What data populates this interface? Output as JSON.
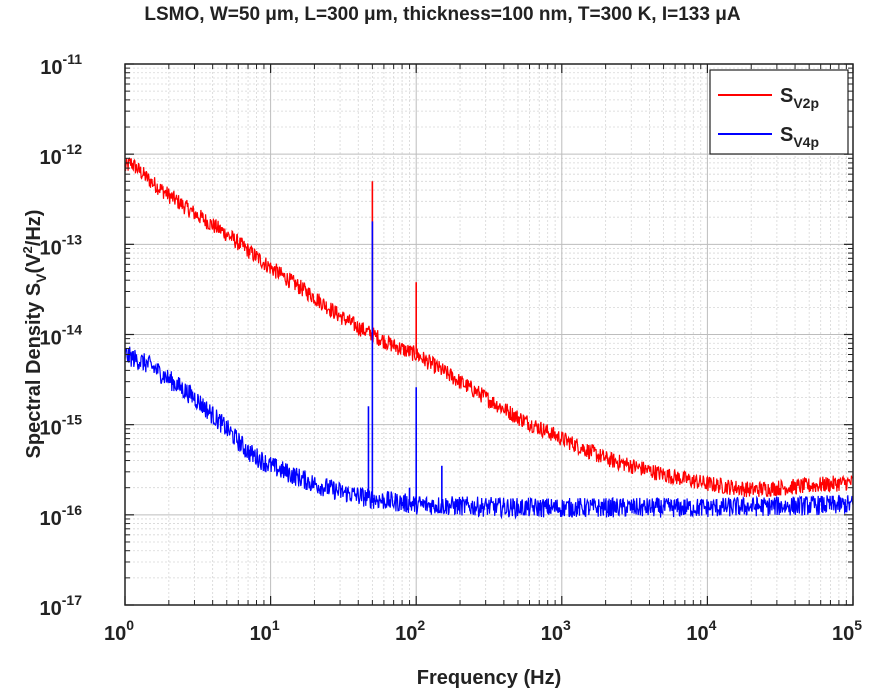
{
  "chart_data": {
    "type": "line",
    "title": "LSMO, W=50 μm, L=300 μm, thickness=100 nm, T=300 K, I=133 μA",
    "xlabel": "Frequency (Hz)",
    "ylabel": {
      "main": "Spectral Density S",
      "sub": "V",
      "rest": "(V",
      "sup": "2",
      "end": "/Hz)"
    },
    "x_scale": "log",
    "y_scale": "log",
    "xlim": [
      1,
      100000
    ],
    "ylim": [
      1e-17,
      1e-11
    ],
    "x_ticks": [
      {
        "base": "10",
        "exp": "0"
      },
      {
        "base": "10",
        "exp": "1"
      },
      {
        "base": "10",
        "exp": "2"
      },
      {
        "base": "10",
        "exp": "3"
      },
      {
        "base": "10",
        "exp": "4"
      },
      {
        "base": "10",
        "exp": "5"
      }
    ],
    "y_ticks": [
      {
        "base": "10",
        "exp": "-17"
      },
      {
        "base": "10",
        "exp": "-16"
      },
      {
        "base": "10",
        "exp": "-15"
      },
      {
        "base": "10",
        "exp": "-14"
      },
      {
        "base": "10",
        "exp": "-13"
      },
      {
        "base": "10",
        "exp": "-12"
      },
      {
        "base": "10",
        "exp": "-11"
      }
    ],
    "grid": true,
    "legend_position": "top-right",
    "series": [
      {
        "name": "S",
        "name_sub": "V2p",
        "color": "#ff0000",
        "points": [
          [
            1,
            7e-13
          ],
          [
            1.1,
            8e-13
          ],
          [
            1.5,
            5e-13
          ],
          [
            2,
            3.5e-13
          ],
          [
            3,
            2.2e-13
          ],
          [
            5,
            1.3e-13
          ],
          [
            10,
            5.5e-14
          ],
          [
            20,
            2.6e-14
          ],
          [
            30,
            1.6e-14
          ],
          [
            40,
            1.2e-14
          ],
          [
            50,
            1e-14
          ],
          [
            70,
            7.5e-15
          ],
          [
            100,
            6e-15
          ],
          [
            200,
            3e-15
          ],
          [
            500,
            1.2e-15
          ],
          [
            1000,
            7e-16
          ],
          [
            2000,
            4.2e-16
          ],
          [
            5000,
            2.8e-16
          ],
          [
            10000,
            2.2e-16
          ],
          [
            20000,
            1.9e-16
          ],
          [
            50000,
            2.1e-16
          ],
          [
            100000,
            2.3e-16
          ]
        ],
        "spikes": [
          [
            50,
            5e-13
          ],
          [
            100,
            3.8e-14
          ]
        ]
      },
      {
        "name": "S",
        "name_sub": "V4p",
        "color": "#0000ff",
        "points": [
          [
            1,
            6e-15
          ],
          [
            1.5,
            4.5e-15
          ],
          [
            2,
            3.2e-15
          ],
          [
            3,
            2e-15
          ],
          [
            5,
            9e-16
          ],
          [
            7,
            5e-16
          ],
          [
            10,
            3.5e-16
          ],
          [
            20,
            2.2e-16
          ],
          [
            30,
            1.8e-16
          ],
          [
            50,
            1.5e-16
          ],
          [
            100,
            1.3e-16
          ],
          [
            200,
            1.25e-16
          ],
          [
            500,
            1.2e-16
          ],
          [
            1000,
            1.2e-16
          ],
          [
            10000,
            1.2e-16
          ],
          [
            100000,
            1.3e-16
          ]
        ],
        "spikes": [
          [
            47,
            1.6e-15
          ],
          [
            50,
            1.8e-13
          ],
          [
            90,
            2e-16
          ],
          [
            100,
            2.6e-15
          ],
          [
            150,
            3.5e-16
          ]
        ]
      }
    ]
  }
}
